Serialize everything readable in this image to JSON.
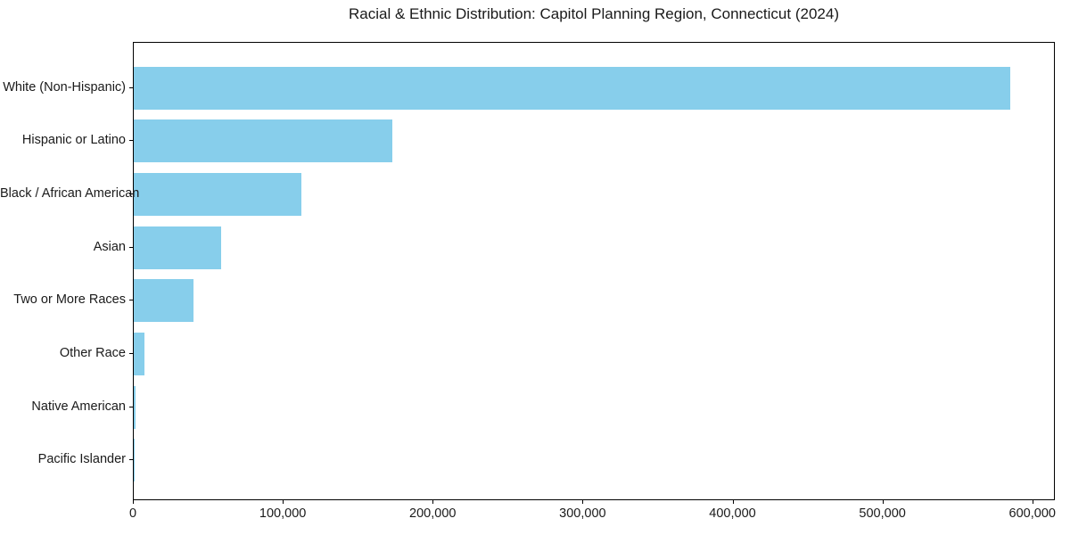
{
  "chart_data": {
    "type": "bar",
    "orientation": "horizontal",
    "title": "Racial & Ethnic Distribution: Capitol Planning Region, Connecticut (2024)",
    "categories": [
      "White (Non-Hispanic)",
      "Hispanic or Latino",
      "Black / African American",
      "Asian",
      "Two or More Races",
      "Other Race",
      "Native American",
      "Pacific Islander"
    ],
    "values": [
      585900,
      172700,
      111900,
      58400,
      39800,
      7000,
      1000,
      200
    ],
    "xlabel": "",
    "ylabel": "",
    "xlim": [
      0,
      615000
    ],
    "xticks": [
      0,
      100000,
      200000,
      300000,
      400000,
      500000,
      600000
    ],
    "xtick_labels": [
      "0",
      "100,000",
      "200,000",
      "300,000",
      "400,000",
      "500,000",
      "600,000"
    ],
    "bar_color": "#87CEEB",
    "text_color": "#1a1a1a",
    "grid": false,
    "legend": null
  }
}
